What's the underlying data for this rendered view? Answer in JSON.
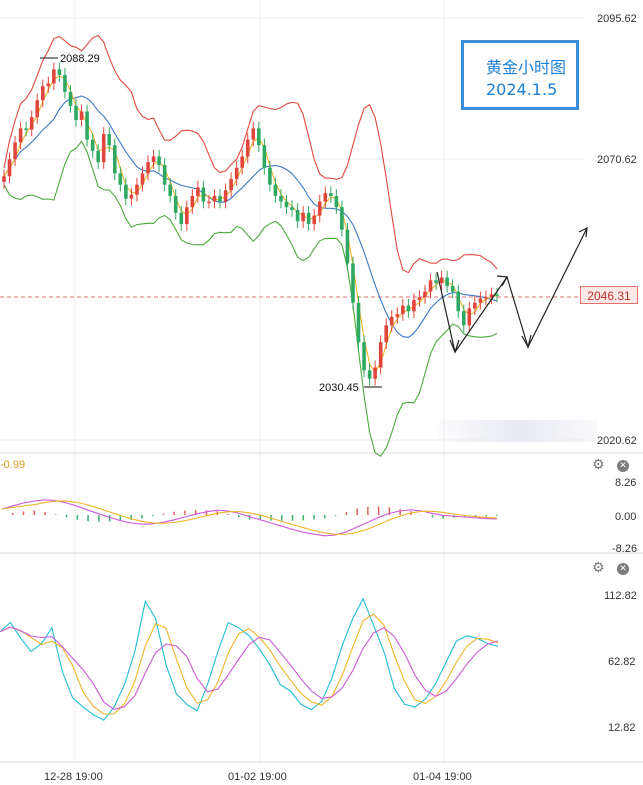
{
  "title": {
    "line1": "黄金小时图",
    "line2": "2024.1.5"
  },
  "current_price_tag": "2046.31",
  "price_axis": [
    "2095.62",
    "2070.62",
    "2020.62"
  ],
  "annotations": {
    "high": "2088.29",
    "low": "2030.45"
  },
  "macd_panel": {
    "value_label": "-0.99",
    "axis": [
      "8.26",
      "0.00",
      "-8.26"
    ]
  },
  "osc_panel": {
    "axis": [
      "112.82",
      "62.82",
      "12.82"
    ]
  },
  "time_axis": [
    "12-28 19:00",
    "01-02 19:00",
    "01-04 19:00"
  ],
  "icons": {
    "settings": "gear-icon",
    "close": "close-icon"
  },
  "colors": {
    "upper_band": "#e0493f",
    "lower_band": "#4caa3c",
    "ma_blue": "#3b79c9",
    "ma_yellow": "#f0b429",
    "candle_up": "#e0463c",
    "candle_down": "#2fa862",
    "line_cyan": "#22bcd6",
    "line_purple": "#cc5ad8",
    "macd_up": "#e06060",
    "macd_down": "#3bb070"
  },
  "chart_data": [
    {
      "type": "candlestick",
      "title": "黄金小时图",
      "ylim": [
        2020.62,
        2095.62
      ],
      "x": [
        "12-28 19:00",
        "01-02 19:00",
        "01-04 19:00"
      ],
      "closes": [
        2067.5,
        2070.5,
        2073.5,
        2076.0,
        2075.8,
        2078.0,
        2081.0,
        2083.5,
        2084.0,
        2086.5,
        2085.5,
        2082.5,
        2080.0,
        2077.5,
        2079.0,
        2074.0,
        2072.0,
        2070.0,
        2075.0,
        2073.0,
        2068.0,
        2066.0,
        2063.5,
        2064.2,
        2066.0,
        2068.0,
        2070.0,
        2071.0,
        2069.5,
        2066.0,
        2064.0,
        2061.0,
        2059.0,
        2062.0,
        2064.0,
        2065.5,
        2063.0,
        2063.0,
        2064.0,
        2063.0,
        2065.0,
        2067.0,
        2069.0,
        2071.0,
        2074.0,
        2076.0,
        2073.0,
        2069.0,
        2066.0,
        2064.0,
        2063.0,
        2062.0,
        2061.5,
        2059.5,
        2061.0,
        2059.0,
        2060.5,
        2063.0,
        2064.5,
        2064.0,
        2062.0,
        2058.0,
        2052.0,
        2045.0,
        2038.0,
        2033.0,
        2031.5,
        2033.5,
        2038.0,
        2041.0,
        2042.5,
        2043.0,
        2044.5,
        2043.5,
        2045.5,
        2046.0,
        2047.0,
        2049.0,
        2048.5,
        2049.5,
        2048.0,
        2047.0,
        2043.5,
        2041.0,
        2044.0,
        2045.0,
        2045.8,
        2046.0,
        2046.5,
        2046.3
      ],
      "high": 2088.29,
      "low": 2030.45,
      "last": 2046.31
    },
    {
      "type": "line",
      "name": "macd",
      "value_label": "-0.99",
      "ylim": [
        -8.26,
        8.26
      ],
      "values": [
        1.5,
        2.3,
        3.0,
        3.5,
        3.8,
        3.6,
        3.0,
        2.2,
        1.2,
        0.3,
        -0.6,
        -1.4,
        -2.0,
        -2.3,
        -2.2,
        -1.8,
        -1.2,
        -0.5,
        0.2,
        0.8,
        1.2,
        1.0,
        0.4,
        -0.4,
        -1.2,
        -2.0,
        -2.8,
        -3.6,
        -4.3,
        -4.8,
        -5.2,
        -5.0,
        -4.2,
        -3.0,
        -1.8,
        -0.6,
        0.4,
        1.0,
        1.3,
        1.0,
        0.4,
        -0.1,
        -0.3,
        -0.5,
        -0.7,
        -0.9,
        -0.99
      ]
    },
    {
      "type": "line",
      "name": "oscillator",
      "ylim": [
        12.82,
        112.82
      ],
      "values": [
        85,
        92,
        80,
        70,
        76,
        88,
        55,
        35,
        28,
        22,
        18,
        28,
        45,
        70,
        108,
        95,
        60,
        38,
        30,
        25,
        45,
        70,
        92,
        88,
        82,
        72,
        60,
        45,
        40,
        30,
        26,
        32,
        50,
        75,
        95,
        110,
        90,
        70,
        42,
        30,
        28,
        34,
        46,
        62,
        78,
        82,
        80,
        76,
        74
      ]
    }
  ]
}
